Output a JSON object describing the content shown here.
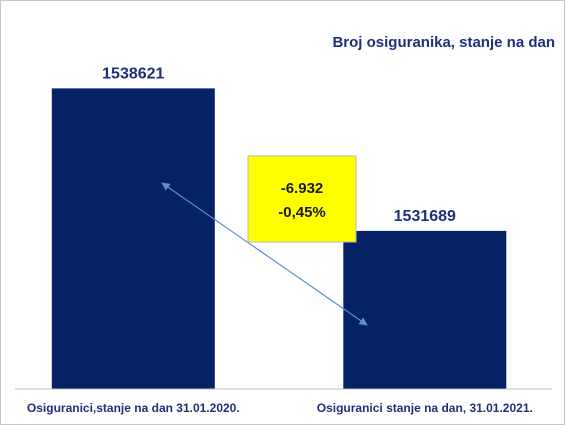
{
  "colors": {
    "bar": "#042264",
    "title": "#1f2f7a",
    "annotation_fill": "#ffff00",
    "annotation_border": "#b8b8b8",
    "arrow": "#5b8fd6",
    "axis": "#bfbfbf"
  },
  "chart_data": {
    "type": "bar",
    "title": "Broj osiguranika, stanje na dan",
    "xlabel": "",
    "ylabel": "",
    "categories": [
      "Osiguranici,stanje na dan 31.01.2020.",
      "Osiguranici stanje na dan, 31.01.2021."
    ],
    "values": [
      1538621,
      1531689
    ],
    "data_labels": [
      "1538621",
      "1531689"
    ],
    "ylim": [
      1524000,
      1540000
    ],
    "grid": false,
    "legend": "none",
    "annotation": {
      "lines": [
        "-6.932",
        "-0,45%"
      ]
    }
  }
}
